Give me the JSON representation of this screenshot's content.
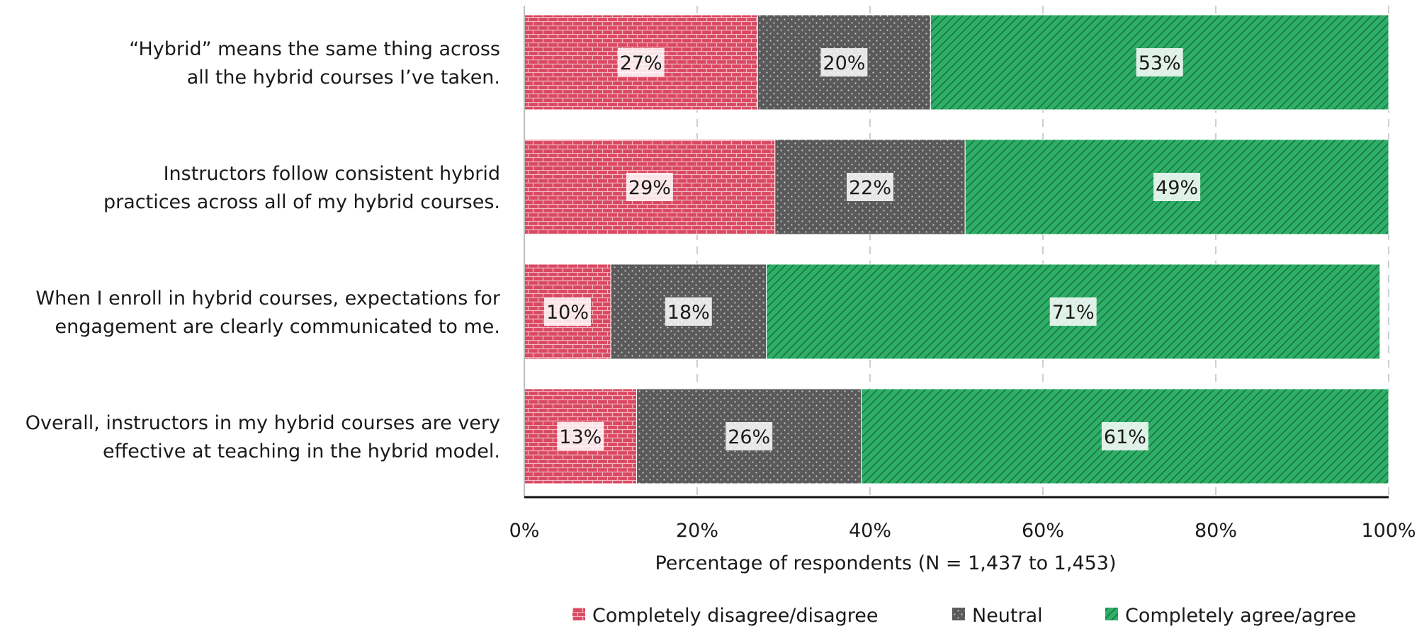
{
  "chart_data": {
    "type": "bar",
    "orientation": "horizontal",
    "stacked": true,
    "categories": [
      [
        "“Hybrid” means the same thing across",
        "all the hybrid courses I’ve taken."
      ],
      [
        "Instructors follow consistent hybrid",
        "practices across all of my hybrid courses."
      ],
      [
        "When I enroll in hybrid courses, expectations for",
        "engagement are clearly communicated to me."
      ],
      [
        "Overall, instructors in my hybrid courses are very",
        "effective at teaching in the hybrid model."
      ]
    ],
    "series": [
      {
        "name": "Completely disagree/disagree",
        "values": [
          27,
          29,
          10,
          13
        ],
        "labels": [
          "27%",
          "29%",
          "10%",
          "13%"
        ],
        "color": "#d94861",
        "pattern": "brick"
      },
      {
        "name": "Neutral",
        "values": [
          20,
          22,
          18,
          26
        ],
        "labels": [
          "20%",
          "22%",
          "18%",
          "26%"
        ],
        "color": "#5a5a5a",
        "pattern": "dots"
      },
      {
        "name": "Completely agree/agree",
        "values": [
          53,
          49,
          71,
          61
        ],
        "labels": [
          "53%",
          "49%",
          "71%",
          "61%"
        ],
        "color": "#2cb067",
        "pattern": "diagonal"
      }
    ],
    "xlabel": "Percentage of respondents (N = 1,437 to 1,453)",
    "xlim": [
      0,
      100
    ],
    "xticks": [
      "0%",
      "20%",
      "40%",
      "60%",
      "80%",
      "100%"
    ],
    "grid": "vertical dashed",
    "legend": "bottom"
  }
}
